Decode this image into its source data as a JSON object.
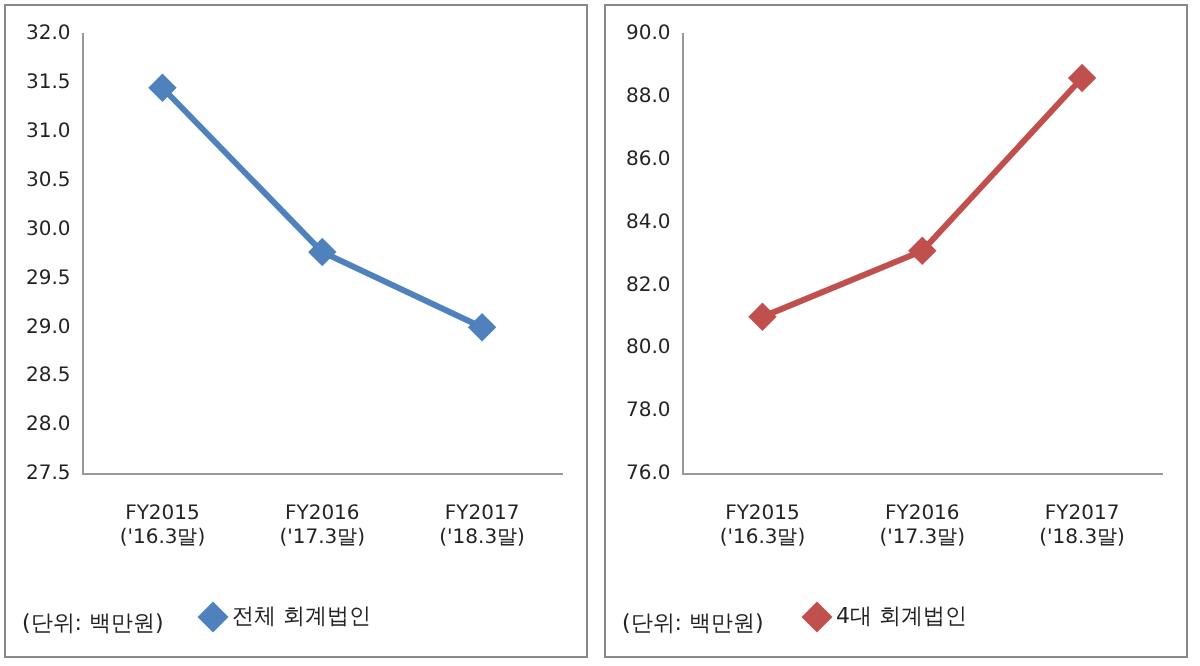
{
  "chart_data": [
    {
      "type": "line",
      "categories": [
        "FY2015\n('16.3말)",
        "FY2016\n('17.3말)",
        "FY2017\n('18.3말)"
      ],
      "series": [
        {
          "name": "전체 회계법인",
          "color": "#4f81bd",
          "values": [
            31.45,
            29.77,
            29.0
          ]
        }
      ],
      "ylim": [
        27.5,
        32.0
      ],
      "yticks": [
        {
          "value": 27.5,
          "label": "27.5"
        },
        {
          "value": 28,
          "label": "28.0"
        },
        {
          "value": 28.5,
          "label": "28.5"
        },
        {
          "value": 29,
          "label": "29.0"
        },
        {
          "value": 29.5,
          "label": "29.5"
        },
        {
          "value": 30,
          "label": "30.0"
        },
        {
          "value": 30.5,
          "label": "30.5"
        },
        {
          "value": 31,
          "label": "31.0"
        },
        {
          "value": 31.5,
          "label": "31.5"
        },
        {
          "value": 32,
          "label": "32.0"
        }
      ],
      "grid": false,
      "legend": "bottom",
      "marker": "diamond",
      "line_style": "solid",
      "annotations": [
        "(단위: 백만원)"
      ]
    },
    {
      "type": "line",
      "categories": [
        "FY2015\n('16.3말)",
        "FY2016\n('17.3말)",
        "FY2017\n('18.3말)"
      ],
      "series": [
        {
          "name": "4대 회계법인",
          "color": "#c0504d",
          "values": [
            81.0,
            83.1,
            88.6
          ]
        }
      ],
      "ylim": [
        76.0,
        90.0
      ],
      "yticks": [
        {
          "value": 76,
          "label": "76.0"
        },
        {
          "value": 78,
          "label": "78.0"
        },
        {
          "value": 80,
          "label": "80.0"
        },
        {
          "value": 82,
          "label": "82.0"
        },
        {
          "value": 84,
          "label": "84.0"
        },
        {
          "value": 86,
          "label": "86.0"
        },
        {
          "value": 88,
          "label": "88.0"
        },
        {
          "value": 90,
          "label": "90.0"
        }
      ],
      "grid": false,
      "legend": "bottom",
      "marker": "diamond",
      "line_style": "solid",
      "annotations": [
        "(단위: 백만원)"
      ]
    }
  ]
}
